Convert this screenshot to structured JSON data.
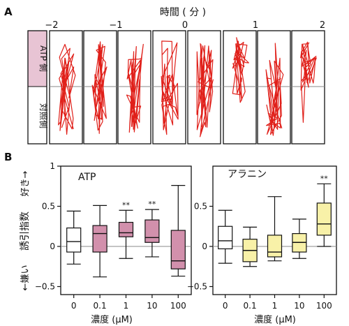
{
  "panel_a": {
    "label": "A",
    "time_title": "時間 ( 分 )",
    "time_ticks": [
      "−2",
      "−1",
      "0",
      "1",
      "2"
    ],
    "row_labels": {
      "top": "ATP 側",
      "bottom": "対照側"
    },
    "highlight_color": "#e8c4d4",
    "trace_color": "#e0201a"
  },
  "panel_b": {
    "label": "B",
    "ylabel": "誘引指数",
    "ylabel_good": "好き→",
    "ylabel_bad": "←嫌い",
    "xlabel": "濃度 (μM)"
  },
  "chart_data": [
    {
      "type": "box",
      "title": "ATP",
      "categories": [
        "0",
        "0.1",
        "1",
        "10",
        "100"
      ],
      "ylim": [
        -0.6,
        1.0
      ],
      "yticks": [
        "−0.5",
        "0",
        "0.5",
        "1"
      ],
      "ytick_values": [
        -0.5,
        0,
        0.5,
        1
      ],
      "fill": [
        "#ffffff",
        "#d290ac",
        "#d290ac",
        "#d290ac",
        "#d290ac"
      ],
      "boxes": [
        {
          "min": -0.22,
          "q1": -0.07,
          "median": 0.06,
          "q3": 0.23,
          "max": 0.44
        },
        {
          "min": -0.38,
          "q1": -0.07,
          "median": 0.16,
          "q3": 0.26,
          "max": 0.51
        },
        {
          "min": -0.15,
          "q1": 0.12,
          "median": 0.17,
          "q3": 0.3,
          "max": 0.45
        },
        {
          "min": -0.13,
          "q1": 0.05,
          "median": 0.11,
          "q3": 0.33,
          "max": 0.46
        },
        {
          "min": -0.37,
          "q1": -0.28,
          "median": -0.18,
          "q3": 0.2,
          "max": 0.76
        }
      ],
      "significance": [
        "",
        "",
        "**",
        "**",
        ""
      ]
    },
    {
      "type": "box",
      "title": "アラニン",
      "categories": [
        "0",
        "0.1",
        "1",
        "10",
        "100"
      ],
      "ylim": [
        -0.6,
        1.0
      ],
      "yticks": [
        "−0.5",
        "0",
        "0.5"
      ],
      "ytick_values": [
        -0.5,
        0,
        0.5
      ],
      "fill": [
        "#ffffff",
        "#f8f1a8",
        "#f8f1a8",
        "#f8f1a8",
        "#f8f1a8"
      ],
      "boxes": [
        {
          "min": -0.21,
          "q1": -0.03,
          "median": 0.07,
          "q3": 0.25,
          "max": 0.45
        },
        {
          "min": -0.25,
          "q1": -0.19,
          "median": -0.05,
          "q3": 0.09,
          "max": 0.24
        },
        {
          "min": -0.18,
          "q1": -0.13,
          "median": -0.07,
          "q3": 0.14,
          "max": 0.62
        },
        {
          "min": -0.15,
          "q1": -0.07,
          "median": 0.05,
          "q3": 0.16,
          "max": 0.34
        },
        {
          "min": 0.0,
          "q1": 0.14,
          "median": 0.28,
          "q3": 0.54,
          "max": 0.78
        }
      ],
      "significance": [
        "",
        "",
        "",
        "",
        "**"
      ]
    }
  ]
}
